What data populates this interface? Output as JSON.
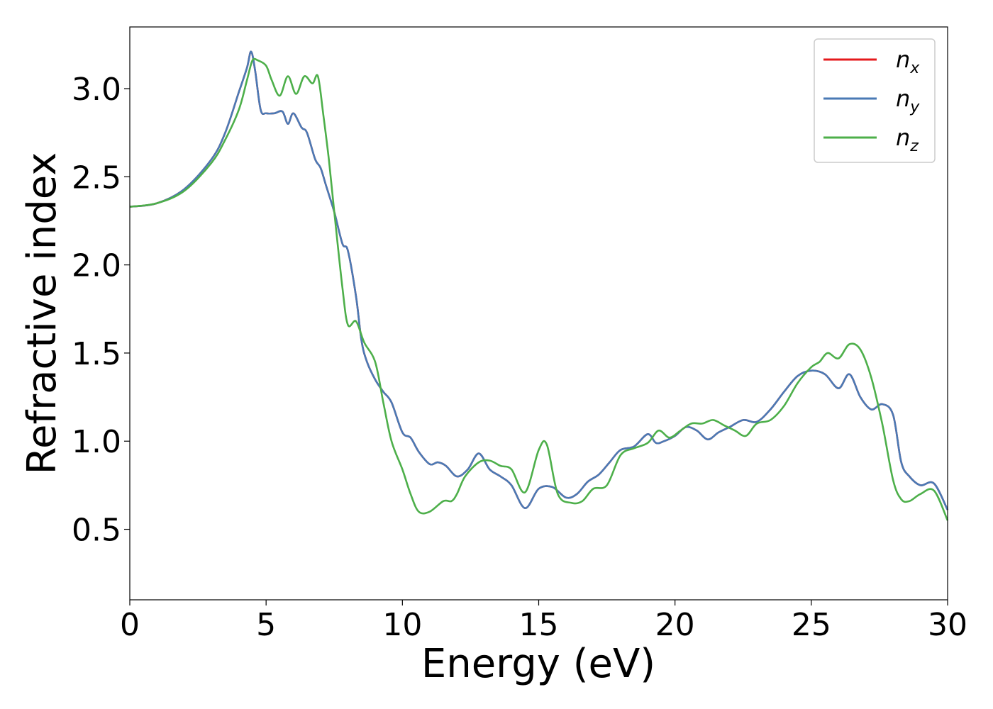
{
  "chart_data": {
    "type": "line",
    "xlabel": "Energy (eV)",
    "ylabel": "Refractive index",
    "xlim": [
      0,
      30
    ],
    "ylim": [
      0.1,
      3.35
    ],
    "xticks": [
      0,
      5,
      10,
      15,
      20,
      25,
      30
    ],
    "xtick_labels": [
      "0",
      "5",
      "10",
      "15",
      "20",
      "25",
      "30"
    ],
    "yticks": [
      0.5,
      1.0,
      1.5,
      2.0,
      2.5,
      3.0
    ],
    "ytick_labels": [
      "0.5",
      "1.0",
      "1.5",
      "2.0",
      "2.5",
      "3.0"
    ],
    "grid": false,
    "legend_position": "top-right",
    "legend": [
      {
        "base": "n",
        "sub": "x"
      },
      {
        "base": "n",
        "sub": "y"
      },
      {
        "base": "n",
        "sub": "z"
      }
    ],
    "series": [
      {
        "name": "n_x",
        "color": "#e41a1c",
        "x": [
          0,
          1,
          2,
          3,
          3.5,
          4.0,
          4.3,
          4.45,
          4.6,
          4.8,
          5.0,
          5.3,
          5.6,
          5.8,
          6.0,
          6.3,
          6.5,
          6.8,
          7.0,
          7.2,
          7.5,
          7.8,
          8.0,
          8.3,
          8.5,
          8.7,
          9.0,
          9.3,
          9.6,
          10.0,
          10.3,
          10.6,
          11.0,
          11.3,
          11.6,
          12.0,
          12.4,
          12.8,
          13.2,
          13.6,
          14.0,
          14.5,
          15.0,
          15.5,
          16.0,
          16.4,
          16.8,
          17.2,
          17.6,
          18.0,
          18.5,
          19.0,
          19.3,
          19.6,
          20.0,
          20.4,
          20.8,
          21.2,
          21.6,
          22.0,
          22.5,
          23.0,
          23.5,
          24.0,
          24.5,
          25.0,
          25.5,
          26.0,
          26.4,
          26.8,
          27.2,
          27.6,
          28.0,
          28.3,
          28.6,
          29.0,
          29.5,
          30.0
        ],
        "y": [
          2.33,
          2.35,
          2.43,
          2.6,
          2.75,
          2.98,
          3.12,
          3.21,
          3.1,
          2.88,
          2.86,
          2.86,
          2.87,
          2.8,
          2.86,
          2.78,
          2.75,
          2.6,
          2.55,
          2.45,
          2.3,
          2.12,
          2.08,
          1.82,
          1.57,
          1.45,
          1.35,
          1.28,
          1.22,
          1.05,
          1.02,
          0.94,
          0.87,
          0.88,
          0.86,
          0.8,
          0.84,
          0.93,
          0.84,
          0.8,
          0.75,
          0.62,
          0.73,
          0.74,
          0.68,
          0.7,
          0.77,
          0.81,
          0.88,
          0.95,
          0.97,
          1.04,
          0.99,
          1.0,
          1.03,
          1.08,
          1.06,
          1.01,
          1.05,
          1.08,
          1.12,
          1.11,
          1.18,
          1.28,
          1.37,
          1.4,
          1.38,
          1.3,
          1.38,
          1.25,
          1.18,
          1.21,
          1.15,
          0.88,
          0.8,
          0.75,
          0.76,
          0.61
        ]
      },
      {
        "name": "n_y",
        "color": "#4a7ab5",
        "x": [
          0,
          1,
          2,
          3,
          3.5,
          4.0,
          4.3,
          4.45,
          4.6,
          4.8,
          5.0,
          5.3,
          5.6,
          5.8,
          6.0,
          6.3,
          6.5,
          6.8,
          7.0,
          7.2,
          7.5,
          7.8,
          8.0,
          8.3,
          8.5,
          8.7,
          9.0,
          9.3,
          9.6,
          10.0,
          10.3,
          10.6,
          11.0,
          11.3,
          11.6,
          12.0,
          12.4,
          12.8,
          13.2,
          13.6,
          14.0,
          14.5,
          15.0,
          15.5,
          16.0,
          16.4,
          16.8,
          17.2,
          17.6,
          18.0,
          18.5,
          19.0,
          19.3,
          19.6,
          20.0,
          20.4,
          20.8,
          21.2,
          21.6,
          22.0,
          22.5,
          23.0,
          23.5,
          24.0,
          24.5,
          25.0,
          25.5,
          26.0,
          26.4,
          26.8,
          27.2,
          27.6,
          28.0,
          28.3,
          28.6,
          29.0,
          29.5,
          30.0
        ],
        "y": [
          2.33,
          2.35,
          2.43,
          2.6,
          2.75,
          2.98,
          3.12,
          3.21,
          3.1,
          2.88,
          2.86,
          2.86,
          2.87,
          2.8,
          2.86,
          2.78,
          2.75,
          2.6,
          2.55,
          2.45,
          2.3,
          2.12,
          2.08,
          1.82,
          1.57,
          1.45,
          1.35,
          1.28,
          1.22,
          1.05,
          1.02,
          0.94,
          0.87,
          0.88,
          0.86,
          0.8,
          0.84,
          0.93,
          0.84,
          0.8,
          0.75,
          0.62,
          0.73,
          0.74,
          0.68,
          0.7,
          0.77,
          0.81,
          0.88,
          0.95,
          0.97,
          1.04,
          0.99,
          1.0,
          1.03,
          1.08,
          1.06,
          1.01,
          1.05,
          1.08,
          1.12,
          1.11,
          1.18,
          1.28,
          1.37,
          1.4,
          1.38,
          1.3,
          1.38,
          1.25,
          1.18,
          1.21,
          1.15,
          0.88,
          0.8,
          0.75,
          0.76,
          0.61
        ]
      },
      {
        "name": "n_z",
        "color": "#4daf4a",
        "x": [
          0,
          1,
          2,
          3,
          3.5,
          4.0,
          4.3,
          4.5,
          4.7,
          5.0,
          5.2,
          5.5,
          5.8,
          6.1,
          6.4,
          6.7,
          6.9,
          7.1,
          7.3,
          7.5,
          7.8,
          8.0,
          8.3,
          8.6,
          9.0,
          9.3,
          9.6,
          10.0,
          10.3,
          10.6,
          11.0,
          11.5,
          11.8,
          12.0,
          12.3,
          12.8,
          13.2,
          13.6,
          14.0,
          14.5,
          15.0,
          15.3,
          15.7,
          16.2,
          16.6,
          17.0,
          17.5,
          18.0,
          18.5,
          19.0,
          19.4,
          19.8,
          20.2,
          20.6,
          21.0,
          21.4,
          21.8,
          22.2,
          22.6,
          23.0,
          23.5,
          24.0,
          24.5,
          25.0,
          25.3,
          25.6,
          26.0,
          26.4,
          26.8,
          27.2,
          27.6,
          28.0,
          28.3,
          28.6,
          29.0,
          29.5,
          30.0
        ],
        "y": [
          2.33,
          2.35,
          2.42,
          2.58,
          2.71,
          2.88,
          3.05,
          3.16,
          3.16,
          3.13,
          3.05,
          2.96,
          3.07,
          2.97,
          3.07,
          3.03,
          3.07,
          2.85,
          2.6,
          2.3,
          1.87,
          1.66,
          1.68,
          1.56,
          1.45,
          1.22,
          1.0,
          0.84,
          0.7,
          0.6,
          0.6,
          0.66,
          0.66,
          0.7,
          0.8,
          0.88,
          0.89,
          0.86,
          0.84,
          0.71,
          0.95,
          0.98,
          0.7,
          0.65,
          0.66,
          0.73,
          0.75,
          0.92,
          0.96,
          0.99,
          1.06,
          1.02,
          1.06,
          1.1,
          1.1,
          1.12,
          1.09,
          1.06,
          1.03,
          1.1,
          1.12,
          1.2,
          1.33,
          1.42,
          1.45,
          1.5,
          1.47,
          1.55,
          1.52,
          1.36,
          1.1,
          0.78,
          0.67,
          0.66,
          0.7,
          0.72,
          0.55
        ]
      }
    ]
  }
}
